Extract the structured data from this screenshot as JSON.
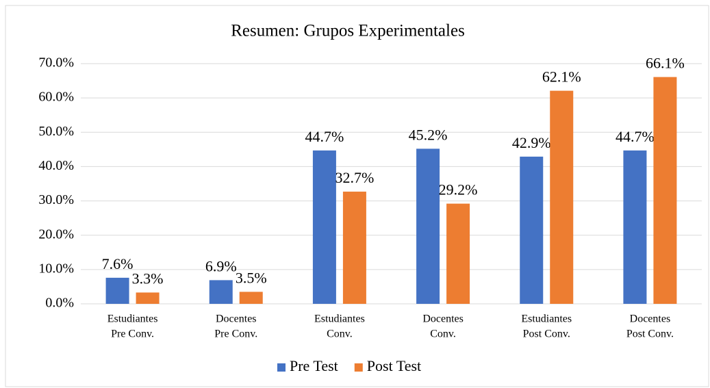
{
  "chart_data": {
    "type": "bar",
    "title": "Resumen: Grupos Experimentales",
    "categories": [
      [
        "Estudiantes",
        "Pre Conv."
      ],
      [
        "Docentes",
        "Pre Conv."
      ],
      [
        "Estudiantes",
        "Conv."
      ],
      [
        "Docentes",
        "Conv."
      ],
      [
        "Estudiantes",
        "Post Conv."
      ],
      [
        "Docentes",
        "Post Conv."
      ]
    ],
    "series": [
      {
        "name": "Pre Test",
        "color": "#4472c4",
        "values": [
          7.6,
          6.9,
          44.7,
          45.2,
          42.9,
          44.7
        ],
        "value_labels": [
          "7.6%",
          "6.9%",
          "44.7%",
          "45.2%",
          "42.9%",
          "44.7%"
        ]
      },
      {
        "name": "Post Test",
        "color": "#ed7d31",
        "values": [
          3.3,
          3.5,
          32.7,
          29.2,
          62.1,
          66.1
        ],
        "value_labels": [
          "3.3%",
          "3.5%",
          "32.7%",
          "29.2%",
          "62.1%",
          "66.1%"
        ]
      }
    ],
    "ylim": [
      0,
      70
    ],
    "yticks": [
      {
        "value": 0,
        "label": "0.0%"
      },
      {
        "value": 10,
        "label": "10.0%"
      },
      {
        "value": 20,
        "label": "20.0%"
      },
      {
        "value": 30,
        "label": "30.0%"
      },
      {
        "value": 40,
        "label": "40.0%"
      },
      {
        "value": 50,
        "label": "50.0%"
      },
      {
        "value": 60,
        "label": "60.0%"
      },
      {
        "value": 70,
        "label": "70.0%"
      }
    ],
    "grid": true,
    "legend": "bottom"
  }
}
